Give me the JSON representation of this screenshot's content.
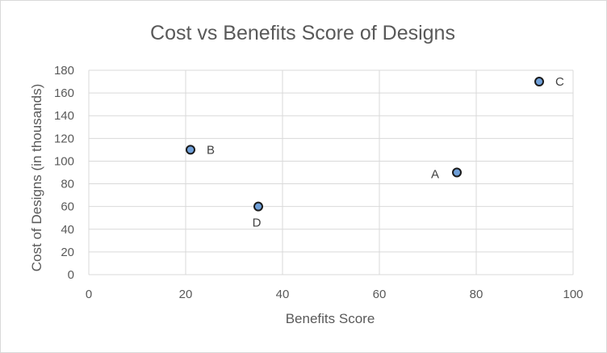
{
  "chart_data": {
    "type": "scatter",
    "title": "Cost vs Benefits Score of Designs",
    "xlabel": "Benefits Score",
    "ylabel": "Cost of Designs (in thousands)",
    "xlim": [
      0,
      100
    ],
    "ylim": [
      0,
      180
    ],
    "xticks": [
      0,
      20,
      40,
      60,
      80,
      100
    ],
    "yticks": [
      0,
      20,
      40,
      60,
      80,
      100,
      120,
      140,
      160,
      180
    ],
    "grid": true,
    "points": [
      {
        "label": "A",
        "x": 76,
        "y": 90,
        "label_side": "left"
      },
      {
        "label": "B",
        "x": 21,
        "y": 110,
        "label_side": "right"
      },
      {
        "label": "C",
        "x": 93,
        "y": 170,
        "label_side": "right"
      },
      {
        "label": "D",
        "x": 35,
        "y": 60,
        "label_side": "below"
      }
    ],
    "marker_color": "#6f9fd8",
    "marker_edge_color": "#1a1a1a"
  }
}
